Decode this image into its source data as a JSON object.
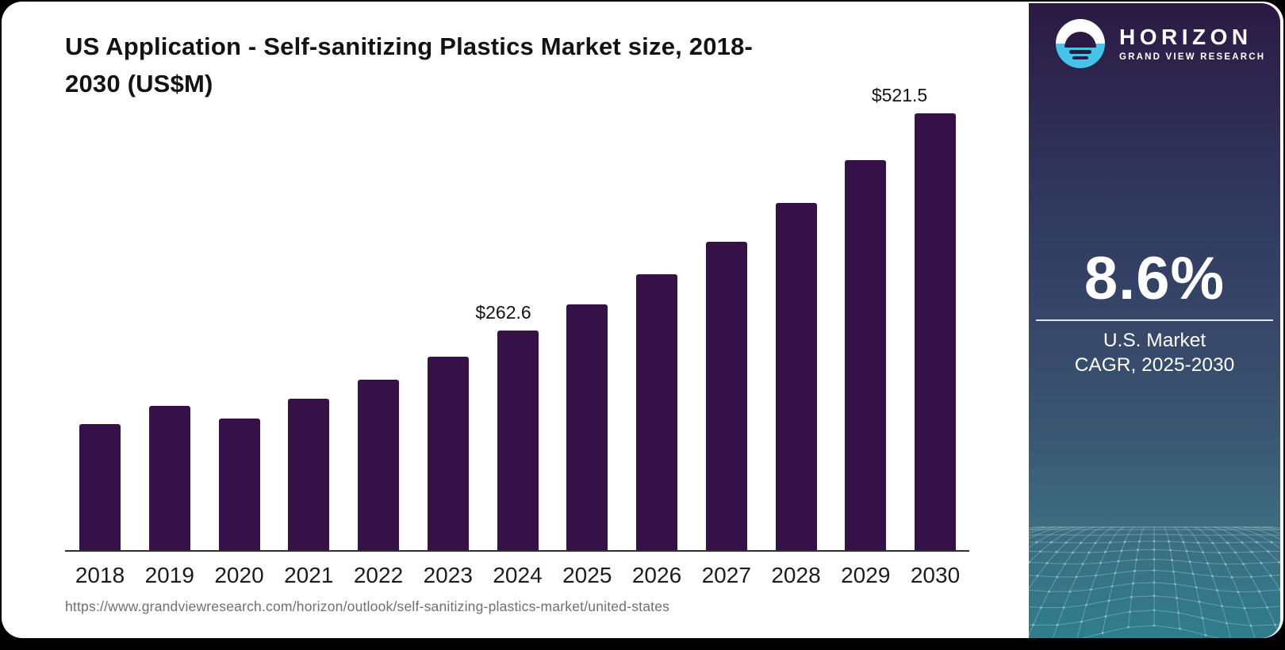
{
  "page": {
    "background": "#000000",
    "card_background": "#ffffff"
  },
  "header": {
    "title": "US Application - Self-sanitizing Plastics Market size, 2018-2030 (US$M)"
  },
  "source": {
    "url": "https://www.grandviewresearch.com/horizon/outlook/self-sanitizing-plastics-market/united-states"
  },
  "brand_panel": {
    "logo": {
      "icon": "horizon-sun-over-water-icon",
      "name": "HORIZON",
      "subtitle": "GRAND VIEW RESEARCH",
      "icon_blue": "#45c4ea",
      "icon_dark": "#2b1a44"
    },
    "stat": {
      "value": "8.6%",
      "label_line1": "U.S. Market",
      "label_line2": "CAGR, 2025-2030"
    },
    "gradient_top": "#2b1a43",
    "gradient_bottom": "#2f7d8d",
    "decoration": "perspective-wireframe-mesh"
  },
  "chart_data": {
    "type": "bar",
    "title": "US Application - Self-sanitizing Plastics Market size, 2018-2030 (US$M)",
    "unit": "US$M",
    "categories": [
      "2018",
      "2019",
      "2020",
      "2021",
      "2022",
      "2023",
      "2024",
      "2025",
      "2026",
      "2027",
      "2028",
      "2029",
      "2030"
    ],
    "values": [
      151.2,
      172.9,
      157.8,
      181.4,
      204.1,
      231.5,
      262.6,
      294.1,
      329.7,
      368.7,
      414.5,
      465.5,
      521.5
    ],
    "value_labels": [
      {
        "category": "2024",
        "text": "$262.6"
      },
      {
        "category": "2030",
        "text": "$521.5"
      }
    ],
    "bar_color": "#351147",
    "axis_color": "#2f2f2f",
    "xlabel": "",
    "ylabel": "",
    "ylim": [
      0,
      560
    ],
    "grid": false,
    "legend": false
  }
}
